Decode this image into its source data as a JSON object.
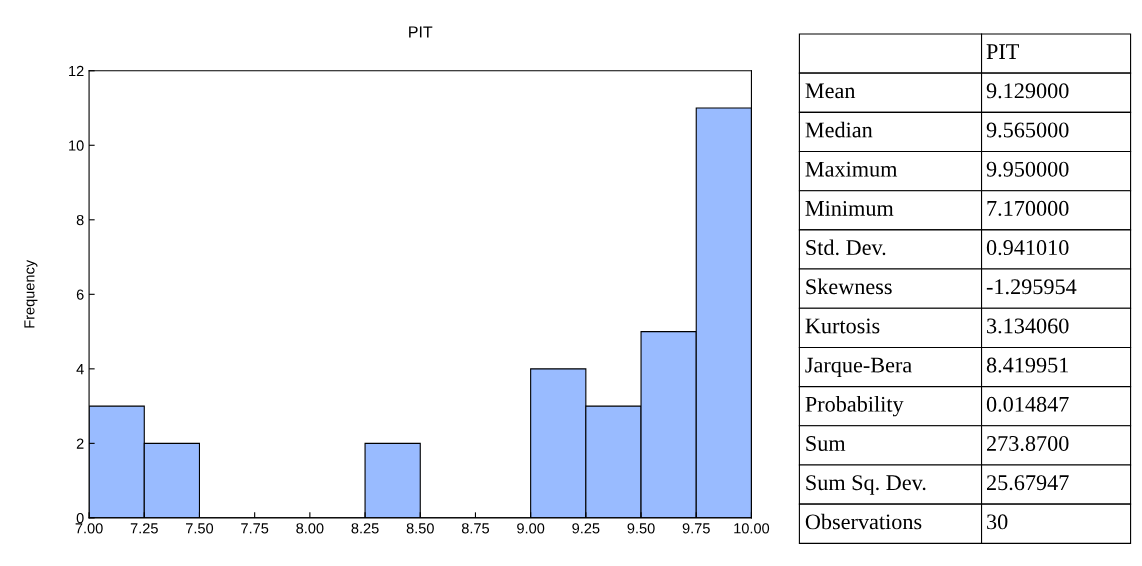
{
  "chart_data": [
    {
      "type": "histogram",
      "title": "PIT",
      "ylabel": "Frequency",
      "bins": [
        7.0,
        7.25,
        7.5,
        7.75,
        8.0,
        8.25,
        8.5,
        8.75,
        9.0,
        9.25,
        9.5,
        9.75,
        10.0
      ],
      "values": [
        3,
        2,
        0,
        0,
        0,
        2,
        0,
        0,
        4,
        3,
        5,
        11
      ],
      "color": "#99bbff",
      "xlim": [
        7.0,
        10.0
      ],
      "xticks": [
        {
          "value": 7.0,
          "label": "7.00"
        },
        {
          "value": 7.25,
          "label": "7.25"
        },
        {
          "value": 7.5,
          "label": "7.50"
        },
        {
          "value": 7.75,
          "label": "7.75"
        },
        {
          "value": 8.0,
          "label": "8.00"
        },
        {
          "value": 8.25,
          "label": "8.25"
        },
        {
          "value": 8.5,
          "label": "8.50"
        },
        {
          "value": 8.75,
          "label": "8.75"
        },
        {
          "value": 9.0,
          "label": "9.00"
        },
        {
          "value": 9.25,
          "label": "9.25"
        },
        {
          "value": 9.5,
          "label": "9.50"
        },
        {
          "value": 9.75,
          "label": "9.75"
        },
        {
          "value": 10.0,
          "label": "10.00"
        }
      ],
      "ylim": [
        0,
        12
      ],
      "yticks": [
        0,
        2,
        4,
        6,
        8,
        10,
        12
      ],
      "grid": false
    },
    {
      "type": "other",
      "title": "PIT",
      "categories": [
        "Mean",
        "Median",
        "Maximum",
        "Minimum",
        "Std. Dev.",
        "Skewness",
        "Kurtosis",
        "Jarque-Bera",
        "Probability",
        "Sum",
        "Sum Sq. Dev.",
        "Observations"
      ],
      "value_labels": [
        "9.129000",
        "9.565000",
        "9.950000",
        "7.170000",
        "0.941010",
        "-1.295954",
        "3.134060",
        "8.419951",
        "0.014847",
        "273.8700",
        "25.67947",
        "30"
      ]
    }
  ]
}
